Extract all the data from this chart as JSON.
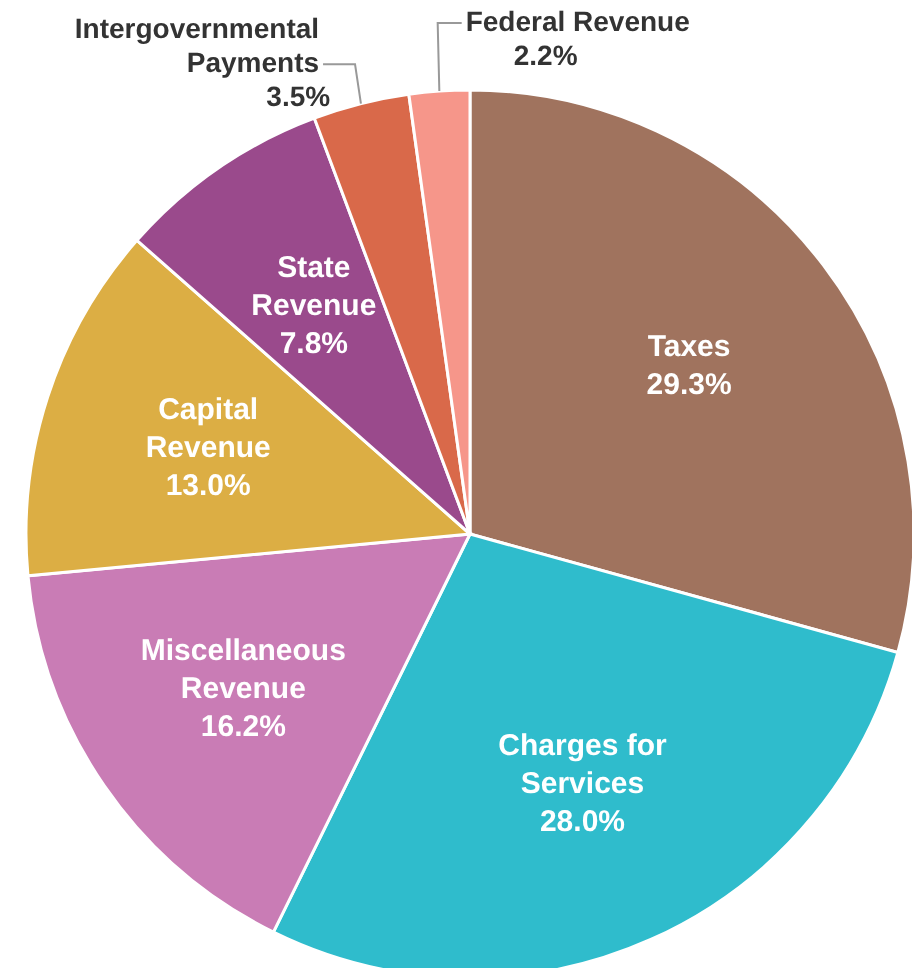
{
  "chart_data": {
    "type": "pie",
    "categories": [
      "Taxes",
      "Charges for Services",
      "Miscellaneous Revenue",
      "Capital Revenue",
      "State Revenue",
      "Intergovernmental Payments",
      "Federal Revenue"
    ],
    "values": [
      29.3,
      28.0,
      16.2,
      13.0,
      7.8,
      3.5,
      2.2
    ],
    "value_labels": [
      "29.3%",
      "28.0%",
      "16.2%",
      "13.0%",
      "7.8%",
      "3.5%",
      "2.2%"
    ],
    "colors": [
      "#a0735e",
      "#2fbccc",
      "#c97cb5",
      "#dcae44",
      "#9a4a8c",
      "#d9694a",
      "#f6968a"
    ]
  }
}
